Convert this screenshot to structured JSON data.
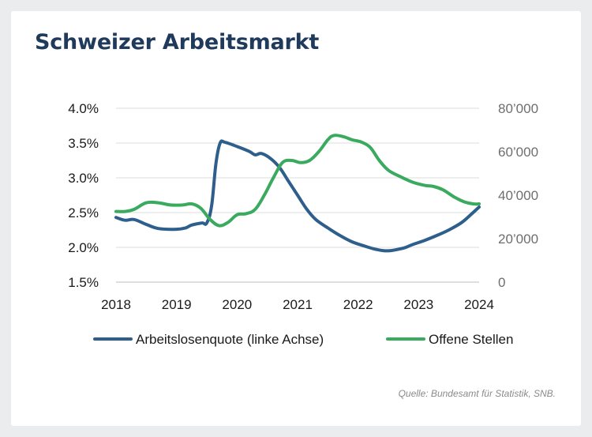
{
  "title": "Schweizer Arbeitsmarkt",
  "source": "Quelle: Bundesamt für Statistik, SNB.",
  "chart_data": {
    "type": "line",
    "title": "Schweizer Arbeitsmarkt",
    "xlabel": "",
    "xlim": [
      2018,
      2024
    ],
    "x_ticks": [
      "2018",
      "2019",
      "2020",
      "2021",
      "2022",
      "2023",
      "2024"
    ],
    "y_left": {
      "ylim": [
        1.5,
        4.0
      ],
      "tick_values": [
        1.5,
        2.0,
        2.5,
        3.0,
        3.5,
        4.0
      ],
      "tick_labels": [
        "1.5%",
        "2.0%",
        "2.5%",
        "3.0%",
        "3.5%",
        "4.0%"
      ]
    },
    "y_right": {
      "ylim": [
        0,
        80000
      ],
      "tick_values": [
        0,
        20000,
        40000,
        60000,
        80000
      ],
      "tick_labels": [
        "0",
        "20’000",
        "40’000",
        "60’000",
        "80’000"
      ]
    },
    "grid": "horizontal",
    "legend_position": "bottom",
    "series": [
      {
        "name": "Arbeitslosenquote (linke Achse)",
        "axis": "left",
        "color": "#2e5f8c",
        "x": [
          2018.0,
          2018.15,
          2018.3,
          2018.5,
          2018.7,
          2019.0,
          2019.15,
          2019.25,
          2019.42,
          2019.5,
          2019.58,
          2019.65,
          2019.72,
          2019.8,
          2020.0,
          2020.2,
          2020.3,
          2020.4,
          2020.55,
          2020.7,
          2020.85,
          2021.0,
          2021.15,
          2021.3,
          2021.5,
          2021.7,
          2021.9,
          2022.1,
          2022.3,
          2022.5,
          2022.75,
          2022.9,
          2023.1,
          2023.3,
          2023.5,
          2023.7,
          2023.85,
          2024.0
        ],
        "y": [
          2.43,
          2.39,
          2.4,
          2.33,
          2.27,
          2.26,
          2.28,
          2.32,
          2.35,
          2.35,
          2.6,
          3.2,
          3.5,
          3.51,
          3.45,
          3.38,
          3.33,
          3.35,
          3.28,
          3.15,
          2.95,
          2.75,
          2.55,
          2.4,
          2.28,
          2.17,
          2.08,
          2.02,
          1.97,
          1.95,
          1.99,
          2.04,
          2.1,
          2.17,
          2.25,
          2.35,
          2.46,
          2.58
        ]
      },
      {
        "name": "Offene Stellen",
        "axis": "right",
        "color": "#3aaa5e",
        "x": [
          2018.0,
          2018.15,
          2018.3,
          2018.5,
          2018.7,
          2018.9,
          2019.1,
          2019.25,
          2019.4,
          2019.55,
          2019.7,
          2019.85,
          2020.0,
          2020.15,
          2020.3,
          2020.45,
          2020.6,
          2020.75,
          2020.9,
          2021.05,
          2021.2,
          2021.35,
          2021.5,
          2021.6,
          2021.75,
          2021.9,
          2022.05,
          2022.2,
          2022.35,
          2022.5,
          2022.7,
          2022.9,
          2023.1,
          2023.25,
          2023.4,
          2023.6,
          2023.75,
          2023.9,
          2024.0
        ],
        "y": [
          32500,
          32500,
          33500,
          36500,
          36500,
          35500,
          35500,
          36000,
          34000,
          29000,
          26000,
          27500,
          31000,
          31500,
          33500,
          40000,
          48000,
          55000,
          56000,
          55000,
          56000,
          60000,
          65500,
          67500,
          67000,
          65500,
          64500,
          62000,
          56000,
          51500,
          48500,
          46000,
          44500,
          44000,
          42500,
          39000,
          37000,
          36000,
          36000
        ]
      }
    ]
  }
}
